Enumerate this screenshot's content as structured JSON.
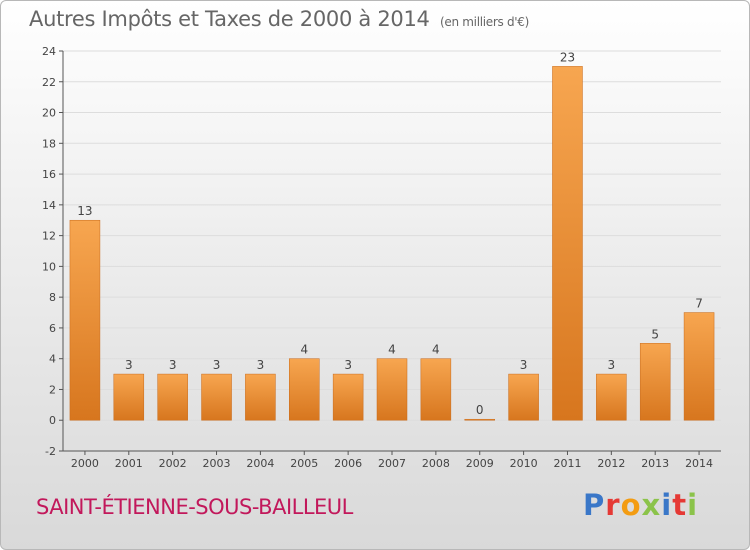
{
  "title": {
    "main": "Autres Impôts et Taxes de 2000 à 2014",
    "unit": "(en milliers d'€)"
  },
  "commune": "SAINT-ÉTIENNE-SOUS-BAILLEUL",
  "logo": {
    "text": "Proxiti",
    "colors": [
      "#3a77c8",
      "#e53935",
      "#f39c12",
      "#8bc34a",
      "#3a77c8",
      "#e53935",
      "#8bc34a"
    ]
  },
  "colors": {
    "bar_top": "#f7a650",
    "bar_bottom": "#d7761e",
    "bar_stroke": "#c86a1a",
    "axis": "#555555",
    "grid": "#dddddd",
    "label": "#444444"
  },
  "chart_data": {
    "type": "bar",
    "title": "Autres Impôts et Taxes de 2000 à 2014",
    "xlabel": "",
    "ylabel": "",
    "categories": [
      "2000",
      "2001",
      "2002",
      "2003",
      "2004",
      "2005",
      "2006",
      "2007",
      "2008",
      "2009",
      "2010",
      "2011",
      "2012",
      "2013",
      "2014"
    ],
    "values": [
      13,
      3,
      3,
      3,
      3,
      4,
      3,
      4,
      4,
      0,
      3,
      23,
      3,
      5,
      7
    ],
    "ylim": [
      -2,
      24
    ],
    "yticks": [
      -2,
      0,
      2,
      4,
      6,
      8,
      10,
      12,
      14,
      16,
      18,
      20,
      22,
      24
    ],
    "grid": true,
    "legend": "none"
  }
}
